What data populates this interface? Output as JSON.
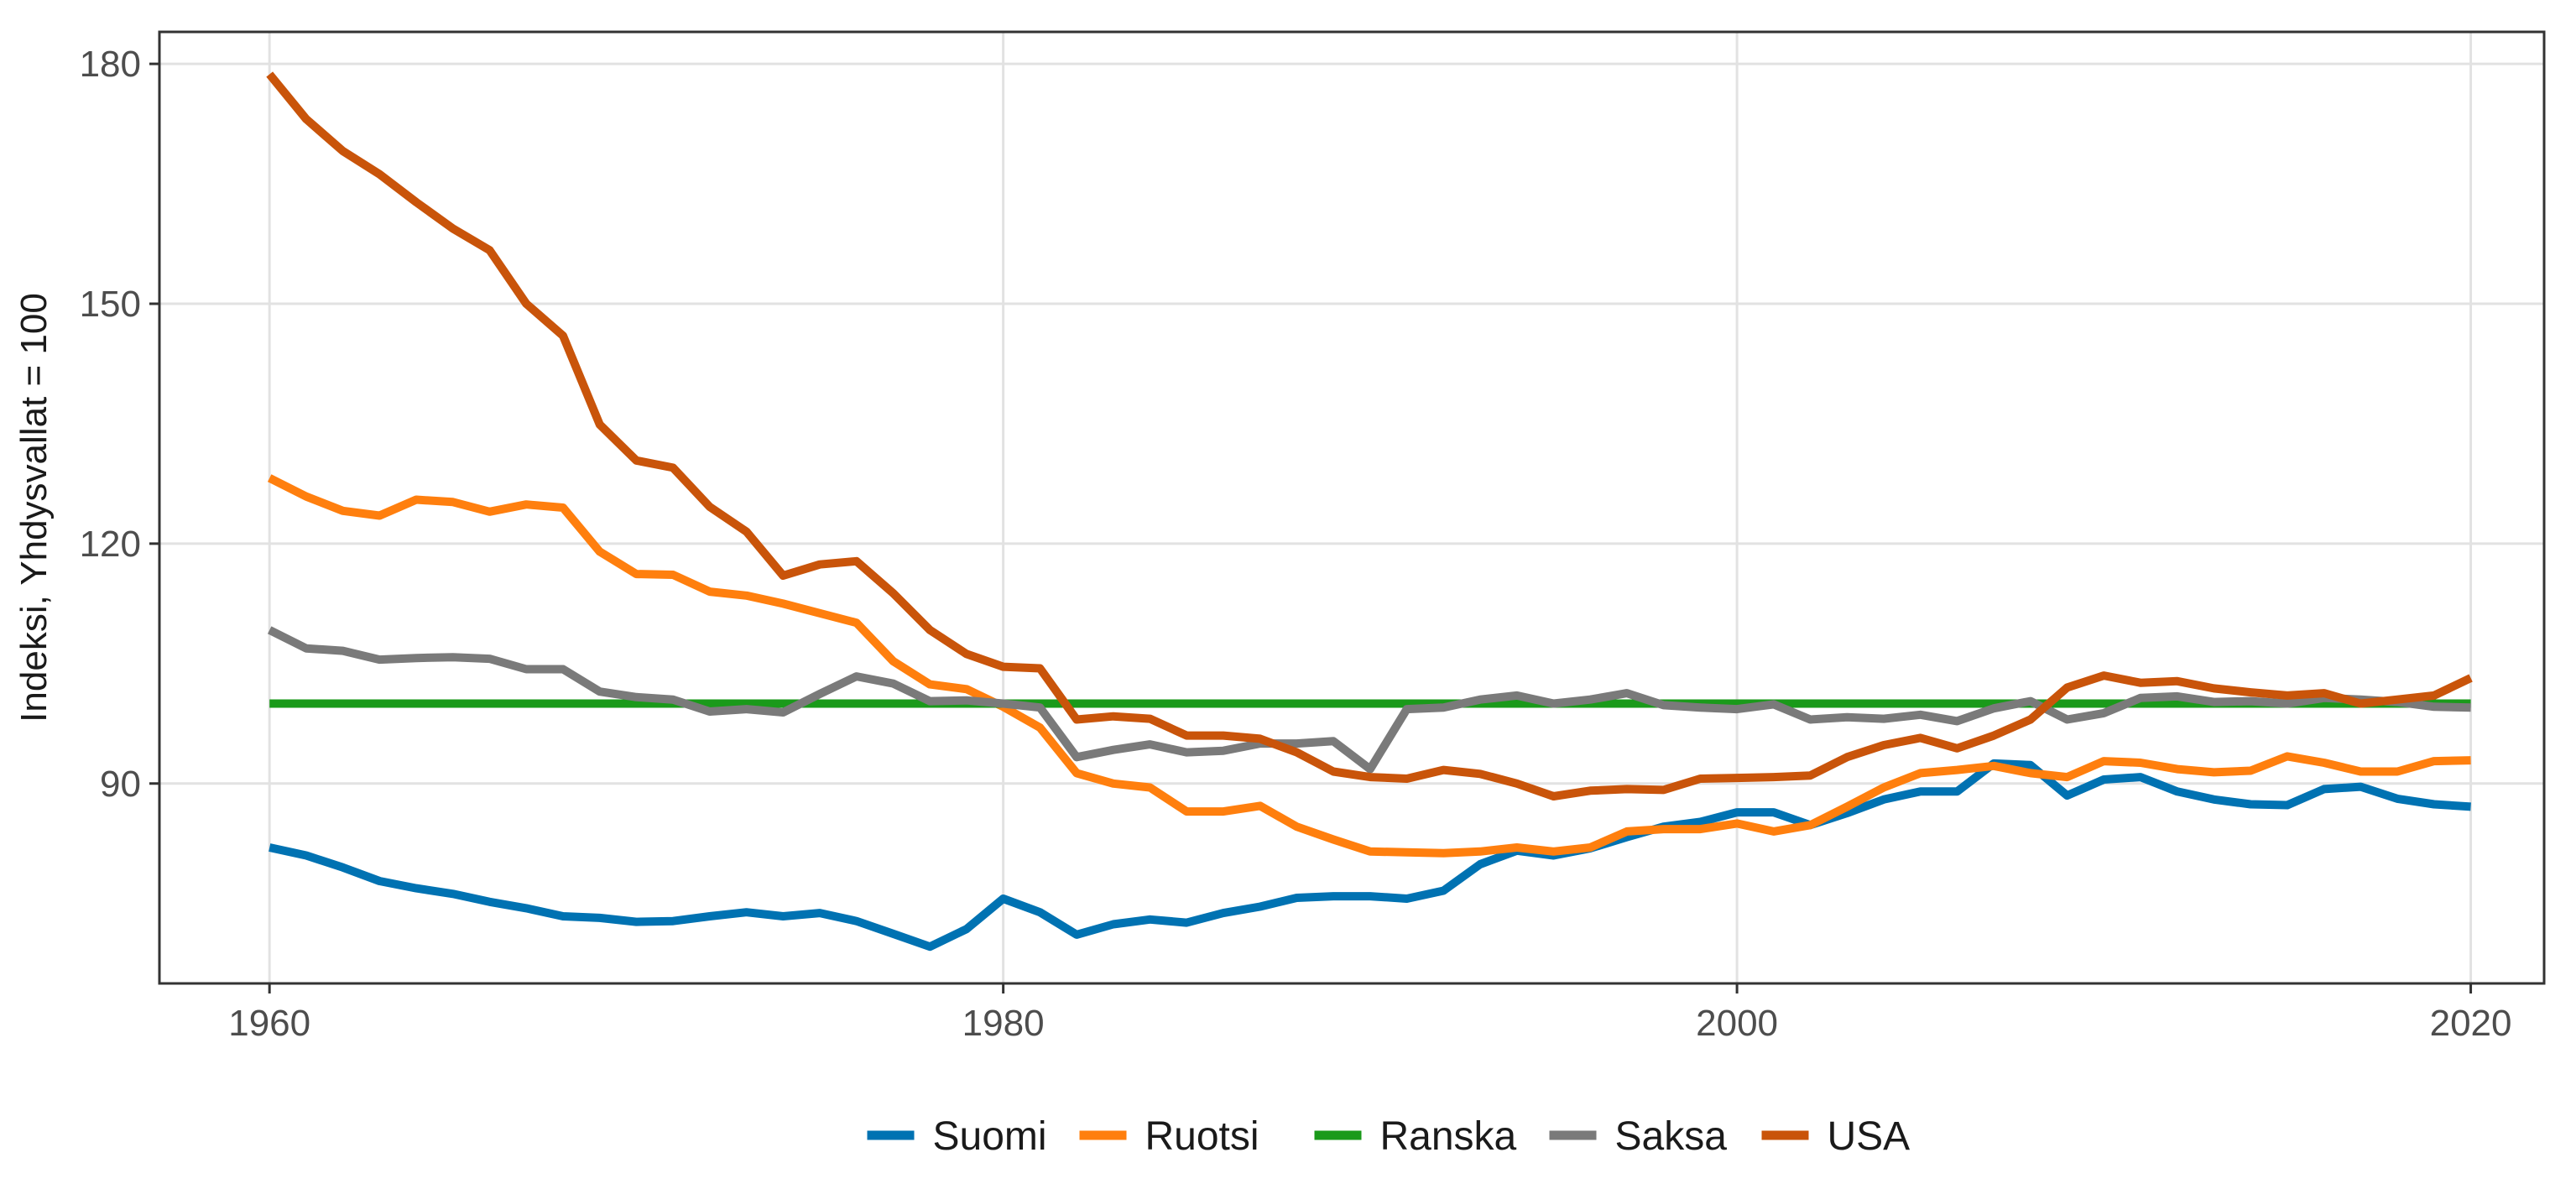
{
  "chart_data": {
    "type": "line",
    "title": "",
    "xlabel": "",
    "ylabel": "Indeksi, Yhdysvallat = 100",
    "xlim": [
      1957,
      2022
    ],
    "ylim": [
      65,
      184
    ],
    "x_ticks": [
      1960,
      1980,
      2000,
      2020
    ],
    "y_ticks": [
      90,
      120,
      150,
      180
    ],
    "grid": true,
    "legend_position": "bottom",
    "x": [
      1960,
      1961,
      1962,
      1963,
      1964,
      1965,
      1966,
      1967,
      1968,
      1969,
      1970,
      1971,
      1972,
      1973,
      1974,
      1975,
      1976,
      1977,
      1978,
      1979,
      1980,
      1981,
      1982,
      1983,
      1984,
      1985,
      1986,
      1987,
      1988,
      1989,
      1990,
      1991,
      1992,
      1993,
      1994,
      1995,
      1996,
      1997,
      1998,
      1999,
      2000,
      2001,
      2002,
      2003,
      2004,
      2005,
      2006,
      2007,
      2008,
      2009,
      2010,
      2011,
      2012,
      2013,
      2014,
      2015,
      2016,
      2017,
      2018,
      2019,
      2020
    ],
    "series": [
      {
        "name": "Suomi",
        "color": "#0072b2",
        "values": [
          82.0,
          81.0,
          79.5,
          77.8,
          76.9,
          76.2,
          75.2,
          74.4,
          73.4,
          73.2,
          72.7,
          72.8,
          73.4,
          73.9,
          73.4,
          73.8,
          72.8,
          71.2,
          69.6,
          71.8,
          75.6,
          73.9,
          71.1,
          72.4,
          73.0,
          72.6,
          73.8,
          74.6,
          75.7,
          75.9,
          75.9,
          75.6,
          76.6,
          79.9,
          81.6,
          81.0,
          81.9,
          83.3,
          84.6,
          85.2,
          86.4,
          86.4,
          84.8,
          86.3,
          88.0,
          89.0,
          89.0,
          92.5,
          92.3,
          88.5,
          90.5,
          90.8,
          89.0,
          88.0,
          87.4,
          87.3,
          89.3,
          89.6,
          88.1,
          87.4,
          87.1
        ]
      },
      {
        "name": "Ruotsi",
        "color": "#ff7f0e",
        "values": [
          128.2,
          125.9,
          124.1,
          123.5,
          125.5,
          125.2,
          124.0,
          124.9,
          124.5,
          119.0,
          116.2,
          116.1,
          114.0,
          113.5,
          112.5,
          111.3,
          110.1,
          105.3,
          102.4,
          101.8,
          99.6,
          97.0,
          91.3,
          90.0,
          89.5,
          86.5,
          86.5,
          87.2,
          84.6,
          83.0,
          81.5,
          81.4,
          81.3,
          81.5,
          82.0,
          81.5,
          82.0,
          84.0,
          84.3,
          84.3,
          85.0,
          84.0,
          84.8,
          87.1,
          89.5,
          91.3,
          91.7,
          92.2,
          91.3,
          90.8,
          92.8,
          92.6,
          91.8,
          91.4,
          91.6,
          93.4,
          92.6,
          91.5,
          91.5,
          92.8,
          92.9
        ]
      },
      {
        "name": "Ranska",
        "color": "#1a9a1a",
        "values": [
          100,
          100,
          100,
          100,
          100,
          100,
          100,
          100,
          100,
          100,
          100,
          100,
          100,
          100,
          100,
          100,
          100,
          100,
          100,
          100,
          100,
          100,
          100,
          100,
          100,
          100,
          100,
          100,
          100,
          100,
          100,
          100,
          100,
          100,
          100,
          100,
          100,
          100,
          100,
          100,
          100,
          100,
          100,
          100,
          100,
          100,
          100,
          100,
          100,
          100,
          100,
          100,
          100,
          100,
          100,
          100,
          100,
          100,
          100,
          100,
          100
        ]
      },
      {
        "name": "Saksa",
        "color": "#7a7a7a",
        "values": [
          109.2,
          106.9,
          106.6,
          105.5,
          105.7,
          105.8,
          105.6,
          104.3,
          104.3,
          101.5,
          100.8,
          100.5,
          99.0,
          99.3,
          98.9,
          101.2,
          103.4,
          102.5,
          100.3,
          100.4,
          100.0,
          99.5,
          93.3,
          94.2,
          94.9,
          93.9,
          94.1,
          95.0,
          95.0,
          95.3,
          91.8,
          99.3,
          99.5,
          100.5,
          101.0,
          100.0,
          100.5,
          101.3,
          99.8,
          99.5,
          99.3,
          99.9,
          98.0,
          98.3,
          98.1,
          98.6,
          97.8,
          99.4,
          100.3,
          98.0,
          98.8,
          100.7,
          100.9,
          100.2,
          100.3,
          100.0,
          100.7,
          100.5,
          100.2,
          99.6,
          99.5
        ]
      },
      {
        "name": "USA",
        "color": "#c9540a",
        "values": [
          178.7,
          173.1,
          169.1,
          166.2,
          162.7,
          159.4,
          156.7,
          150.0,
          146.0,
          134.9,
          130.4,
          129.5,
          124.6,
          121.5,
          116.0,
          117.4,
          117.8,
          113.8,
          109.2,
          106.2,
          104.6,
          104.4,
          98.0,
          98.4,
          98.1,
          96.0,
          96.0,
          95.6,
          93.9,
          91.5,
          90.8,
          90.6,
          91.7,
          91.2,
          90.0,
          88.4,
          89.1,
          89.3,
          89.2,
          90.6,
          90.7,
          90.8,
          91.0,
          93.3,
          94.8,
          95.7,
          94.4,
          96.0,
          98.0,
          102.0,
          103.5,
          102.6,
          102.8,
          101.9,
          101.4,
          101.0,
          101.3,
          100.0,
          100.5,
          101.0,
          103.2
        ]
      }
    ]
  }
}
